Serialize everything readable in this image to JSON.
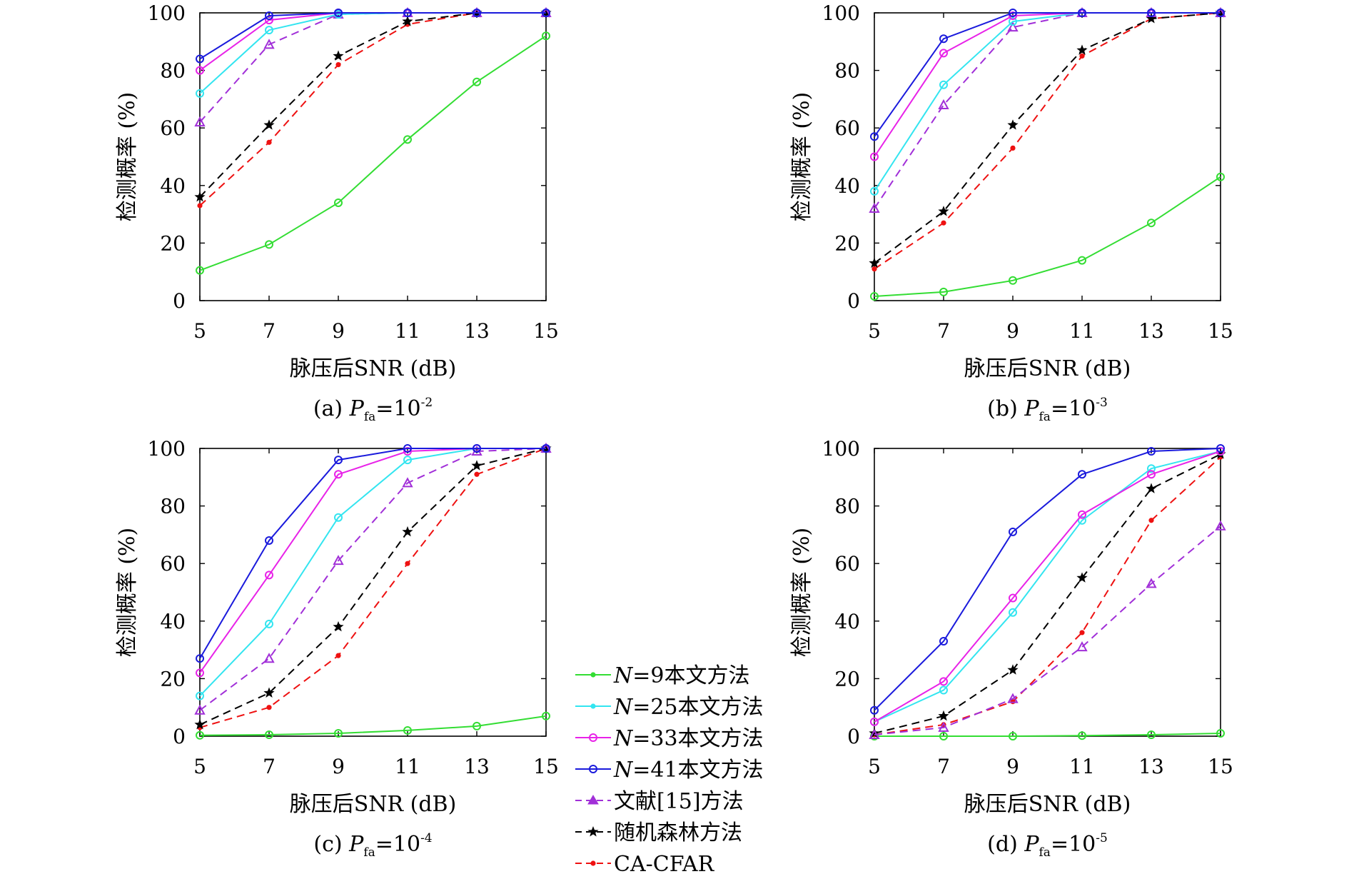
{
  "colors": {
    "n9": "#33dd33",
    "n25": "#33e5f0",
    "n33": "#e822e8",
    "n41": "#1a1adc",
    "ref15": "#a12fd8",
    "rf": "#000000",
    "cacfar": "#ee1111"
  },
  "legend": {
    "n9": {
      "var": "N",
      "rest": "=9本文方法"
    },
    "n25": {
      "var": "N",
      "rest": "=25本文方法"
    },
    "n33": {
      "var": "N",
      "rest": "=33本文方法"
    },
    "n41": {
      "var": "N",
      "rest": "=41本文方法"
    },
    "ref15": "文献[15]方法",
    "rf": "随机森林方法",
    "cacfar": "CA-CFAR"
  },
  "chart_data": [
    {
      "type": "line",
      "caption": {
        "prefix": "(a) ",
        "var": "P",
        "sub": "fa",
        "mid": "=10",
        "sup": "-2"
      },
      "xlabel": "脉压后SNR (dB)",
      "ylabel": "检测概率 (%)",
      "x": [
        5,
        7,
        9,
        11,
        13,
        15
      ],
      "xticks": [
        "5",
        "7",
        "9",
        "11",
        "13",
        "15"
      ],
      "yticks": [
        "0",
        "20",
        "40",
        "60",
        "80",
        "100"
      ],
      "xlim": [
        5,
        15
      ],
      "ylim": [
        0,
        100
      ],
      "grid": false,
      "series": [
        {
          "key": "n9",
          "values": [
            10.5,
            19.5,
            34,
            56,
            76,
            92
          ]
        },
        {
          "key": "n25",
          "values": [
            72,
            94,
            99.5,
            100,
            100,
            100
          ]
        },
        {
          "key": "n33",
          "values": [
            80,
            97.5,
            100,
            100,
            100,
            100
          ]
        },
        {
          "key": "n41",
          "values": [
            84,
            99,
            100,
            100,
            100,
            100
          ]
        },
        {
          "key": "ref15",
          "values": [
            62,
            89,
            99.5,
            100,
            100,
            100
          ]
        },
        {
          "key": "rf",
          "values": [
            36,
            61,
            85,
            97,
            100,
            100
          ]
        },
        {
          "key": "cacfar",
          "values": [
            33,
            55,
            82,
            96,
            100,
            100
          ]
        }
      ]
    },
    {
      "type": "line",
      "caption": {
        "prefix": "(b) ",
        "var": "P",
        "sub": "fa",
        "mid": "=10",
        "sup": "-3"
      },
      "xlabel": "脉压后SNR (dB)",
      "ylabel": "检测概率 (%)",
      "x": [
        5,
        7,
        9,
        11,
        13,
        15
      ],
      "xticks": [
        "5",
        "7",
        "9",
        "11",
        "13",
        "15"
      ],
      "yticks": [
        "0",
        "20",
        "40",
        "60",
        "80",
        "100"
      ],
      "xlim": [
        5,
        15
      ],
      "ylim": [
        0,
        100
      ],
      "grid": false,
      "series": [
        {
          "key": "n9",
          "values": [
            1.5,
            3,
            7,
            14,
            27,
            43
          ]
        },
        {
          "key": "n25",
          "values": [
            38,
            75,
            97,
            100,
            100,
            100
          ]
        },
        {
          "key": "n33",
          "values": [
            50,
            86,
            99,
            100,
            100,
            100
          ]
        },
        {
          "key": "n41",
          "values": [
            57,
            91,
            100,
            100,
            100,
            100
          ]
        },
        {
          "key": "ref15",
          "values": [
            32,
            68,
            95,
            100,
            100,
            100
          ]
        },
        {
          "key": "rf",
          "values": [
            13,
            31,
            61,
            87,
            98,
            100
          ]
        },
        {
          "key": "cacfar",
          "values": [
            11,
            27,
            53,
            85,
            98,
            100
          ]
        }
      ]
    },
    {
      "type": "line",
      "caption": {
        "prefix": "(c) ",
        "var": "P",
        "sub": "fa",
        "mid": "=10",
        "sup": "-4"
      },
      "xlabel": "脉压后SNR (dB)",
      "ylabel": "检测概率 (%)",
      "x": [
        5,
        7,
        9,
        11,
        13,
        15
      ],
      "xticks": [
        "5",
        "7",
        "9",
        "11",
        "13",
        "15"
      ],
      "yticks": [
        "0",
        "20",
        "40",
        "60",
        "80",
        "100"
      ],
      "xlim": [
        5,
        15
      ],
      "ylim": [
        0,
        100
      ],
      "grid": false,
      "series": [
        {
          "key": "n9",
          "values": [
            0.3,
            0.5,
            1,
            2,
            3.5,
            7
          ]
        },
        {
          "key": "n25",
          "values": [
            14,
            39,
            76,
            96,
            100,
            100
          ]
        },
        {
          "key": "n33",
          "values": [
            22,
            56,
            91,
            99,
            100,
            100
          ]
        },
        {
          "key": "n41",
          "values": [
            27,
            68,
            96,
            100,
            100,
            100
          ]
        },
        {
          "key": "ref15",
          "values": [
            9,
            27,
            61,
            88,
            99,
            100
          ]
        },
        {
          "key": "rf",
          "values": [
            4,
            15,
            38,
            71,
            94,
            100
          ]
        },
        {
          "key": "cacfar",
          "values": [
            3,
            10,
            28,
            60,
            91,
            100
          ]
        }
      ]
    },
    {
      "type": "line",
      "caption": {
        "prefix": "(d) ",
        "var": "P",
        "sub": "fa",
        "mid": "=10",
        "sup": "-5"
      },
      "xlabel": "脉压后SNR (dB)",
      "ylabel": "检测概率 (%)",
      "x": [
        5,
        7,
        9,
        11,
        13,
        15
      ],
      "xticks": [
        "5",
        "7",
        "9",
        "11",
        "13",
        "15"
      ],
      "yticks": [
        "0",
        "20",
        "40",
        "60",
        "80",
        "100"
      ],
      "xlim": [
        5,
        15
      ],
      "ylim": [
        0,
        100
      ],
      "grid": false,
      "series": [
        {
          "key": "n9",
          "values": [
            0,
            0,
            0,
            0.2,
            0.5,
            1
          ]
        },
        {
          "key": "n25",
          "values": [
            5,
            16,
            43,
            75,
            93,
            99
          ]
        },
        {
          "key": "n33",
          "values": [
            5,
            19,
            48,
            77,
            91,
            99
          ]
        },
        {
          "key": "n41",
          "values": [
            9,
            33,
            71,
            91,
            99,
            100
          ]
        },
        {
          "key": "ref15",
          "values": [
            0.5,
            3,
            13,
            31,
            53,
            73
          ]
        },
        {
          "key": "rf",
          "values": [
            1,
            7,
            23,
            55,
            86,
            98
          ]
        },
        {
          "key": "cacfar",
          "values": [
            0.5,
            4,
            12,
            36,
            75,
            97
          ]
        }
      ]
    }
  ]
}
